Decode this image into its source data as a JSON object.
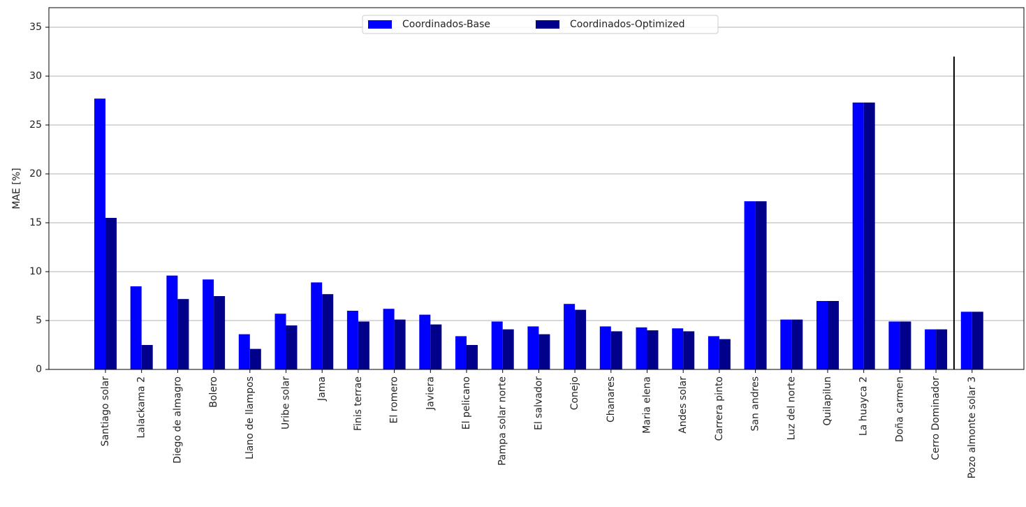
{
  "chart_data": {
    "type": "bar",
    "title": "",
    "xlabel": "",
    "ylabel": "MAE [%]",
    "ylim": [
      0,
      37
    ],
    "yticks": [
      0,
      5,
      10,
      15,
      20,
      25,
      30,
      35
    ],
    "grid": "horizontal",
    "legend_position": "top-center",
    "categories": [
      "Santiago solar",
      "Lalackama 2",
      "Diego de almagro",
      "Bolero",
      "Llano de llampos",
      "Uribe solar",
      "Jama",
      "Finis terrae",
      "El romero",
      "Javiera",
      "El pelicano",
      "Pampa solar norte",
      "El salvador",
      "Conejo",
      "Chanares",
      "Maria elena",
      "Andes solar",
      "Carrera pinto",
      "San andres",
      "Luz del norte",
      "Quilapilun",
      "La huayca 2",
      "Doña carmen",
      "Cerro Dominador",
      "Pozo almonte solar 3"
    ],
    "series": [
      {
        "name": "Coordinados-Base",
        "color": "#0000ff",
        "values": [
          27.7,
          8.5,
          9.6,
          9.2,
          3.6,
          5.7,
          8.9,
          6.0,
          6.2,
          5.6,
          3.4,
          4.9,
          4.4,
          6.7,
          4.4,
          4.3,
          4.2,
          3.4,
          17.2,
          5.1,
          7.0,
          27.3,
          4.9,
          4.1,
          5.9
        ]
      },
      {
        "name": "Coordinados-Optimized",
        "color": "#00008b",
        "values": [
          15.5,
          2.5,
          7.2,
          7.5,
          2.1,
          4.5,
          7.7,
          4.9,
          5.1,
          4.6,
          2.5,
          4.1,
          3.6,
          6.1,
          3.9,
          4.0,
          3.9,
          3.1,
          17.2,
          5.1,
          7.0,
          27.3,
          4.9,
          4.1,
          5.9
        ]
      }
    ],
    "separator": {
      "after_category": "Cerro Dominador",
      "y_top": 32,
      "color": "#000000"
    }
  }
}
